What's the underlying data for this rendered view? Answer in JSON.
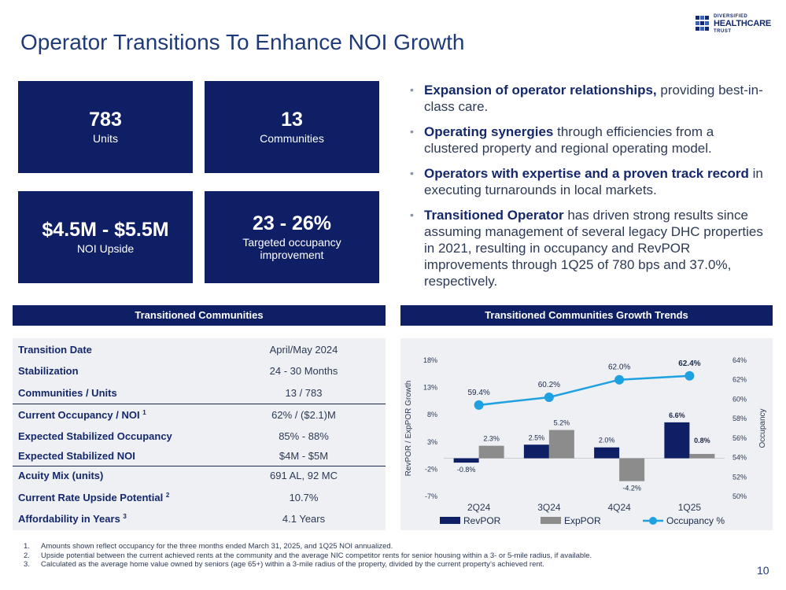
{
  "logo": {
    "line1": "DIVERSIFIED",
    "line2": "HEALTHCARE",
    "line3": "TRUST"
  },
  "title": "Operator Transitions To Enhance NOI Growth",
  "stats": [
    {
      "value": "783",
      "label": "Units"
    },
    {
      "value": "13",
      "label": "Communities"
    },
    {
      "value": "$4.5M - $5.5M",
      "label": "NOI Upside"
    },
    {
      "value": "23 - 26%",
      "label": "Targeted occupancy improvement"
    }
  ],
  "bullets": [
    {
      "bold": "Expansion of operator relationships,",
      "text": " providing best-in-class care."
    },
    {
      "bold": "Operating synergies",
      "text": " through efficiencies from a clustered property and regional operating model."
    },
    {
      "bold": "Operators with expertise and a proven track record",
      "text": " in executing turnarounds in local markets."
    },
    {
      "bold": "Transitioned Operator",
      "text": " has driven strong results since assuming management of several legacy DHC properties in 2021, resulting in occupancy and RevPOR improvements through 1Q25 of 780 bps and 37.0%, respectively."
    }
  ],
  "sections": {
    "left": "Transitioned Communities",
    "right": "Transitioned Communities Growth Trends"
  },
  "communities": [
    {
      "label": "Transition Date",
      "value": "April/May 2024"
    },
    {
      "label": "Stabilization",
      "value": "24 - 30 Months"
    },
    {
      "label": "Communities / Units",
      "value": "13 / 783"
    },
    {
      "label": "Current Occupancy / NOI",
      "sup": "1",
      "value": "62% / ($2.1)M"
    },
    {
      "label": "Expected Stabilized Occupancy",
      "value": "85% - 88%"
    },
    {
      "label": "Expected Stabilized NOI",
      "value": "$4M - $5M"
    },
    {
      "label": "Acuity Mix (units)",
      "value": "691 AL, 92 MC"
    },
    {
      "label": "Current Rate Upside Potential",
      "sup": "2",
      "value": "10.7%"
    },
    {
      "label": "Affordability in Years",
      "sup": "3",
      "value": "4.1 Years"
    }
  ],
  "chart_data": {
    "type": "bar",
    "categories": [
      "2Q24",
      "3Q24",
      "4Q24",
      "1Q25"
    ],
    "series": [
      {
        "name": "RevPOR",
        "type": "bar",
        "axis": "left",
        "color": "#0f1f66",
        "values": [
          -0.8,
          2.5,
          2.0,
          6.6
        ],
        "labels": [
          "-0.8%",
          "2.5%",
          "2.0%",
          "6.6%"
        ]
      },
      {
        "name": "ExpPOR",
        "type": "bar",
        "axis": "left",
        "color": "#8c8c8c",
        "values": [
          2.3,
          5.2,
          -4.2,
          0.8
        ],
        "labels": [
          "2.3%",
          "5.2%",
          "-4.2%",
          "0.8%"
        ]
      },
      {
        "name": "Occupancy %",
        "type": "line",
        "axis": "right",
        "color": "#1ea1e0",
        "values": [
          59.4,
          60.2,
          62.0,
          62.4
        ],
        "labels": [
          "59.4%",
          "60.2%",
          "62.0%",
          "62.4%"
        ]
      }
    ],
    "ylabel": "RevPOR / ExpPOR Growth",
    "y2label": "Occupancy",
    "ylim": [
      -7,
      18
    ],
    "yticks": [
      "18%",
      "13%",
      "8%",
      "3%",
      "-2%",
      "-7%"
    ],
    "y2lim": [
      50,
      64
    ],
    "y2ticks": [
      "64%",
      "62%",
      "60%",
      "58%",
      "56%",
      "54%",
      "52%",
      "50%"
    ],
    "legend_position": "bottom"
  },
  "footnotes": [
    {
      "n": "1.",
      "text": "Amounts shown reflect occupancy for the three months ended March 31, 2025, and 1Q25 NOI annualized."
    },
    {
      "n": "2.",
      "text": "Upside potential between the current achieved rents at the community and the average NIC competitor rents for senior housing within a 3- or 5-mile radius, if available."
    },
    {
      "n": "3.",
      "text": "Calculated as the average home value owned by seniors (age 65+) within a 3-mile radius of the property, divided by the current property’s achieved rent."
    }
  ],
  "page_number": "10"
}
